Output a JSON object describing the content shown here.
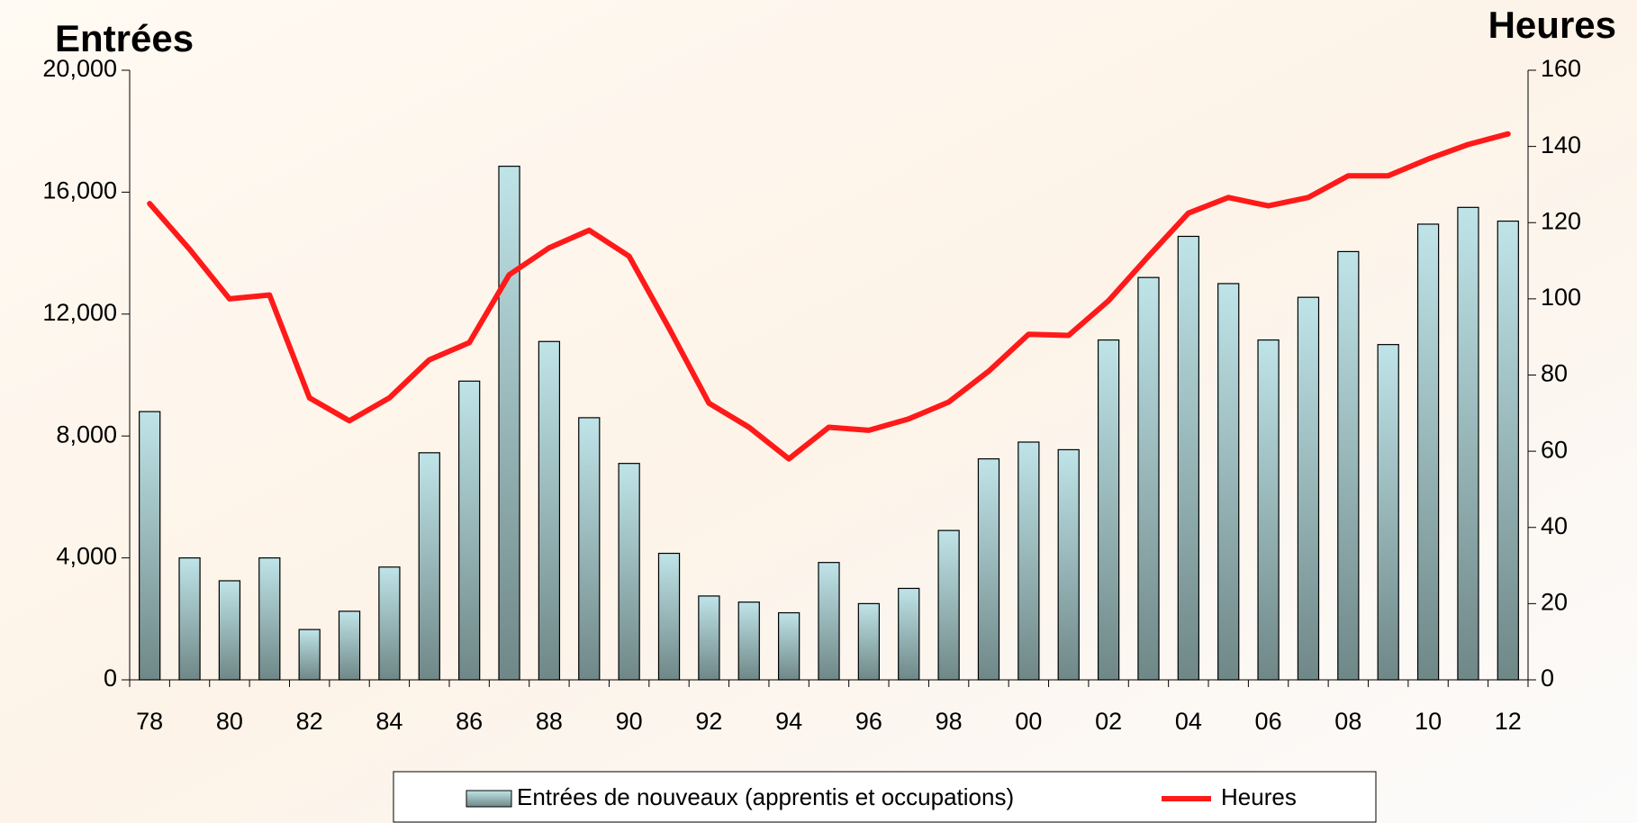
{
  "chart_data": {
    "type": "bar-line",
    "y_title": "Entrées",
    "y2_title": "Heures",
    "categories": [
      "78",
      null,
      "80",
      null,
      "82",
      null,
      "84",
      null,
      "86",
      null,
      "88",
      null,
      "90",
      null,
      "92",
      null,
      "94",
      null,
      "96",
      null,
      "98",
      null,
      "00",
      null,
      "02",
      null,
      "04",
      null,
      "06",
      null,
      "08",
      null,
      "10",
      null,
      "12"
    ],
    "series": [
      {
        "name": "Entrées de nouveaux (apprentis et occupations)",
        "type": "bar",
        "color": "#bfe4e8",
        "values": [
          8800,
          4000,
          3250,
          4000,
          1650,
          2250,
          3700,
          7450,
          9800,
          16850,
          11100,
          8600,
          7100,
          4150,
          2750,
          2550,
          2200,
          3850,
          2500,
          3000,
          4900,
          7250,
          7800,
          7550,
          11150,
          13200,
          14550,
          13000,
          11150,
          12550,
          14050,
          11000,
          14950,
          15500,
          15050
        ]
      },
      {
        "name": "Heures",
        "type": "line",
        "axis": "y2",
        "color": "#ff1a1a",
        "values": [
          125,
          113,
          100,
          101,
          74,
          68,
          74,
          84,
          88.5,
          106.3,
          113.4,
          118,
          111.2,
          92.3,
          72.6,
          66.3,
          58,
          66.3,
          65.5,
          68.5,
          72.9,
          81,
          90.7,
          90.4,
          99.5,
          111.2,
          122.5,
          126.6,
          124.4,
          126.6,
          132.3,
          132.3,
          136.7,
          140.5,
          143.3
        ]
      }
    ],
    "ylim": [
      0,
      20000
    ],
    "yticks": [
      0,
      {
        "value": 4000,
        "label": "4,000"
      },
      {
        "value": 8000,
        "label": "8,000"
      },
      {
        "value": 12000,
        "label": "12,000"
      },
      {
        "value": 16000,
        "label": "16,000"
      },
      {
        "value": 20000,
        "label": "20,000"
      }
    ],
    "y2lim": [
      0,
      160
    ],
    "y2ticks": [
      0,
      20,
      40,
      60,
      80,
      100,
      120,
      140,
      160
    ],
    "grid": false,
    "legend": "bottom"
  }
}
